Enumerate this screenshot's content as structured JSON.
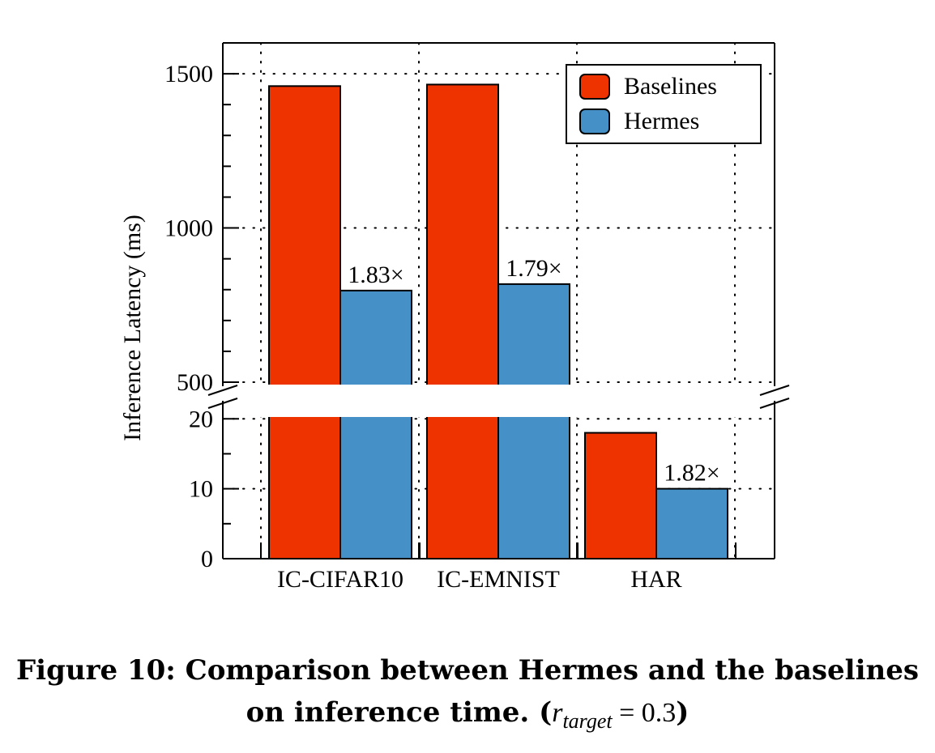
{
  "chart_data": {
    "type": "bar",
    "categories": [
      "IC-CIFAR10",
      "IC-EMNIST",
      "HAR"
    ],
    "series": [
      {
        "name": "Baselines",
        "color": "#ee3300",
        "values": [
          1460,
          1465,
          18
        ]
      },
      {
        "name": "Hermes",
        "color": "#4590c6",
        "values": [
          797,
          818,
          10
        ]
      }
    ],
    "annotations": [
      "1.83×",
      "1.79×",
      "1.82×"
    ],
    "ylabel": "Inference Latency (ms)",
    "xlabel": "",
    "broken_axis": true,
    "y_segments": [
      {
        "range": [
          0,
          22
        ],
        "ticks": [
          0,
          10,
          20
        ]
      },
      {
        "range": [
          500,
          1600
        ],
        "ticks": [
          500,
          1000,
          1500
        ]
      }
    ],
    "grid": "dotted",
    "legend_position": "top-right"
  },
  "caption": {
    "line1": "Figure 10: Comparison between Hermes and the baselines",
    "line2_prefix": "on inference time. (",
    "r_symbol": "r",
    "r_subscript": "target",
    "equals": " = 0.3",
    "close": ")"
  }
}
